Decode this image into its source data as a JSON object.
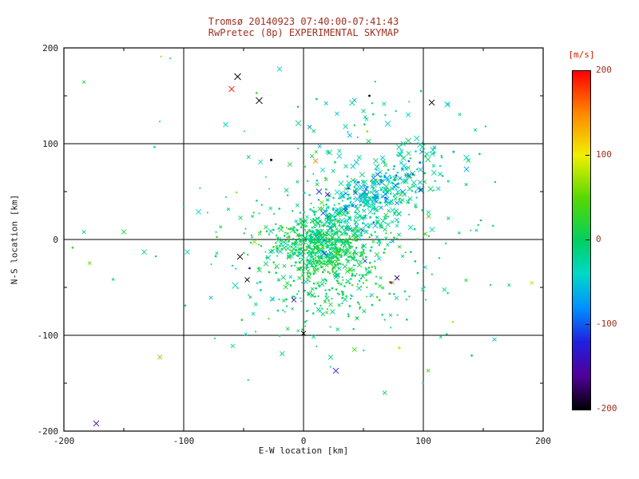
{
  "title": {
    "line1": "Tromsø 20140923 07:40:00-07:41:43",
    "line2": "RwPretec (8p) EXPERIMENTAL SKYMAP"
  },
  "axes": {
    "xlabel": "E-W location [km]",
    "ylabel": "N-S location [km]",
    "xlim": [
      -200,
      200
    ],
    "ylim": [
      -200,
      200
    ],
    "xticks": [
      -200,
      -100,
      0,
      100,
      200
    ],
    "yticks": [
      -200,
      -100,
      0,
      100,
      200
    ],
    "minor_ticks": [
      -150,
      -50,
      50,
      150
    ],
    "grid_values": [
      -100,
      0,
      100
    ]
  },
  "colorbar": {
    "label": "[m/s]",
    "ticks": [
      200,
      100,
      0,
      -100,
      -200
    ],
    "range": [
      -200,
      200
    ]
  },
  "colors": {
    "background": "#ffffff",
    "title": "#a03020",
    "axis_text": "#1a1a1a",
    "frame": "#000000",
    "colorbar_label": "#cc2200",
    "colorbar_tick_text": "#a03020"
  },
  "chart_data": {
    "type": "scatter",
    "title": "Tromsø 20140923 07:40:00-07:41:43 — RwPretec (8p) EXPERIMENTAL SKYMAP",
    "xlabel": "E-W location [km]",
    "ylabel": "N-S location [km]",
    "xlim": [
      -200,
      200
    ],
    "ylim": [
      -200,
      200
    ],
    "color_variable": "line-of-sight velocity [m/s]",
    "color_range": [
      -200,
      200
    ],
    "seed": 20140923,
    "colormap_stops": [
      {
        "v": -200,
        "c": "#000000"
      },
      {
        "v": -160,
        "c": "#50009a"
      },
      {
        "v": -120,
        "c": "#2020e0"
      },
      {
        "v": -80,
        "c": "#0090ff"
      },
      {
        "v": -40,
        "c": "#00d8c8"
      },
      {
        "v": 0,
        "c": "#00d060"
      },
      {
        "v": 50,
        "c": "#58d800"
      },
      {
        "v": 100,
        "c": "#f0f000"
      },
      {
        "v": 150,
        "c": "#ff8800"
      },
      {
        "v": 200,
        "c": "#ff0000"
      }
    ],
    "clusters": [
      {
        "n": 520,
        "cx": 18,
        "cy": -8,
        "sx": 20,
        "sy": 18,
        "angle": 0,
        "vmean": 8,
        "vsd": 16,
        "frac_x": 0.35,
        "smin": 1.5,
        "smax": 3.2
      },
      {
        "n": 300,
        "cx": 48,
        "cy": 32,
        "sx": 40,
        "sy": 14,
        "angle": 38,
        "vmean": -22,
        "vsd": 18,
        "frac_x": 0.6,
        "smin": 1.8,
        "smax": 3.6
      },
      {
        "n": 90,
        "cx": 62,
        "cy": 52,
        "sx": 26,
        "sy": 9,
        "angle": 35,
        "vmean": -70,
        "vsd": 22,
        "frac_x": 0.7,
        "smin": 2.0,
        "smax": 3.6
      },
      {
        "n": 280,
        "cx": 25,
        "cy": 0,
        "sx": 55,
        "sy": 48,
        "angle": 0,
        "vmean": -4,
        "vsd": 22,
        "frac_x": 0.4,
        "smin": 1.4,
        "smax": 3.0
      },
      {
        "n": 130,
        "cx": 18,
        "cy": -58,
        "sx": 28,
        "sy": 26,
        "angle": 0,
        "vmean": 2,
        "vsd": 18,
        "frac_x": 0.35,
        "smin": 1.4,
        "smax": 3.0
      },
      {
        "n": 50,
        "cx": 55,
        "cy": 108,
        "sx": 35,
        "sy": 24,
        "angle": 0,
        "vmean": -28,
        "vsd": 22,
        "frac_x": 0.75,
        "smin": 2.0,
        "smax": 3.6
      },
      {
        "n": 70,
        "cx": 10,
        "cy": 15,
        "sx": 105,
        "sy": 85,
        "angle": 0,
        "vmean": -8,
        "vsd": 45,
        "frac_x": 0.5,
        "smin": 1.5,
        "smax": 3.2
      }
    ],
    "outliers": [
      {
        "x": -55,
        "y": 170,
        "v": -200,
        "sym": "x",
        "s": 4.0
      },
      {
        "x": -60,
        "y": 157,
        "v": 195,
        "sym": "x",
        "s": 3.5
      },
      {
        "x": -37,
        "y": 145,
        "v": -195,
        "sym": "x",
        "s": 4.0
      },
      {
        "x": -20,
        "y": 178,
        "v": -35,
        "sym": "x",
        "s": 3.0
      },
      {
        "x": 107,
        "y": 143,
        "v": -200,
        "sym": "x",
        "s": 3.5
      },
      {
        "x": 120,
        "y": 141,
        "v": -45,
        "sym": "x",
        "s": 3.5
      },
      {
        "x": 152,
        "y": 118,
        "v": -30,
        "sym": "dot",
        "s": 1.2
      },
      {
        "x": -27,
        "y": 83,
        "v": -190,
        "sym": "dot",
        "s": 1.5
      },
      {
        "x": 10,
        "y": 82,
        "v": 150,
        "sym": "x",
        "s": 3.0
      },
      {
        "x": 13,
        "y": 50,
        "v": -110,
        "sym": "x",
        "s": 3.5
      },
      {
        "x": 20,
        "y": 47,
        "v": -150,
        "sym": "x",
        "s": 3.0
      },
      {
        "x": -53,
        "y": -18,
        "v": -200,
        "sym": "x",
        "s": 3.5
      },
      {
        "x": -47,
        "y": -42,
        "v": -200,
        "sym": "x",
        "s": 3.0
      },
      {
        "x": -57,
        "y": -48,
        "v": -30,
        "sym": "x",
        "s": 4.0
      },
      {
        "x": -45,
        "y": -30,
        "v": -120,
        "sym": "dot",
        "s": 1.4
      },
      {
        "x": 73,
        "y": -45,
        "v": 195,
        "sym": "dot",
        "s": 1.5
      },
      {
        "x": 78,
        "y": -40,
        "v": -170,
        "sym": "x",
        "s": 3.0
      },
      {
        "x": 27,
        "y": -137,
        "v": -120,
        "sym": "x",
        "s": 3.5
      },
      {
        "x": 80,
        "y": -113,
        "v": 110,
        "sym": "dot",
        "s": 1.6
      },
      {
        "x": -173,
        "y": -192,
        "v": -150,
        "sym": "x",
        "s": 3.5
      },
      {
        "x": -150,
        "y": 8,
        "v": 20,
        "sym": "x",
        "s": 3.0
      },
      {
        "x": -133,
        "y": -13,
        "v": -20,
        "sym": "x",
        "s": 3.0
      },
      {
        "x": -97,
        "y": -13,
        "v": -30,
        "sym": "x",
        "s": 3.0
      },
      {
        "x": 0,
        "y": -98,
        "v": -200,
        "sym": "x",
        "s": 3.0
      },
      {
        "x": -8,
        "y": -63,
        "v": -150,
        "sym": "x",
        "s": 3.0
      },
      {
        "x": 148,
        "y": 20,
        "v": 10,
        "sym": "dot",
        "s": 1.3
      },
      {
        "x": 160,
        "y": 60,
        "v": -15,
        "sym": "dot",
        "s": 1.2
      },
      {
        "x": 55,
        "y": 150,
        "v": -200,
        "sym": "dot",
        "s": 1.4
      },
      {
        "x": -65,
        "y": 120,
        "v": -40,
        "sym": "x",
        "s": 3.0
      }
    ]
  }
}
